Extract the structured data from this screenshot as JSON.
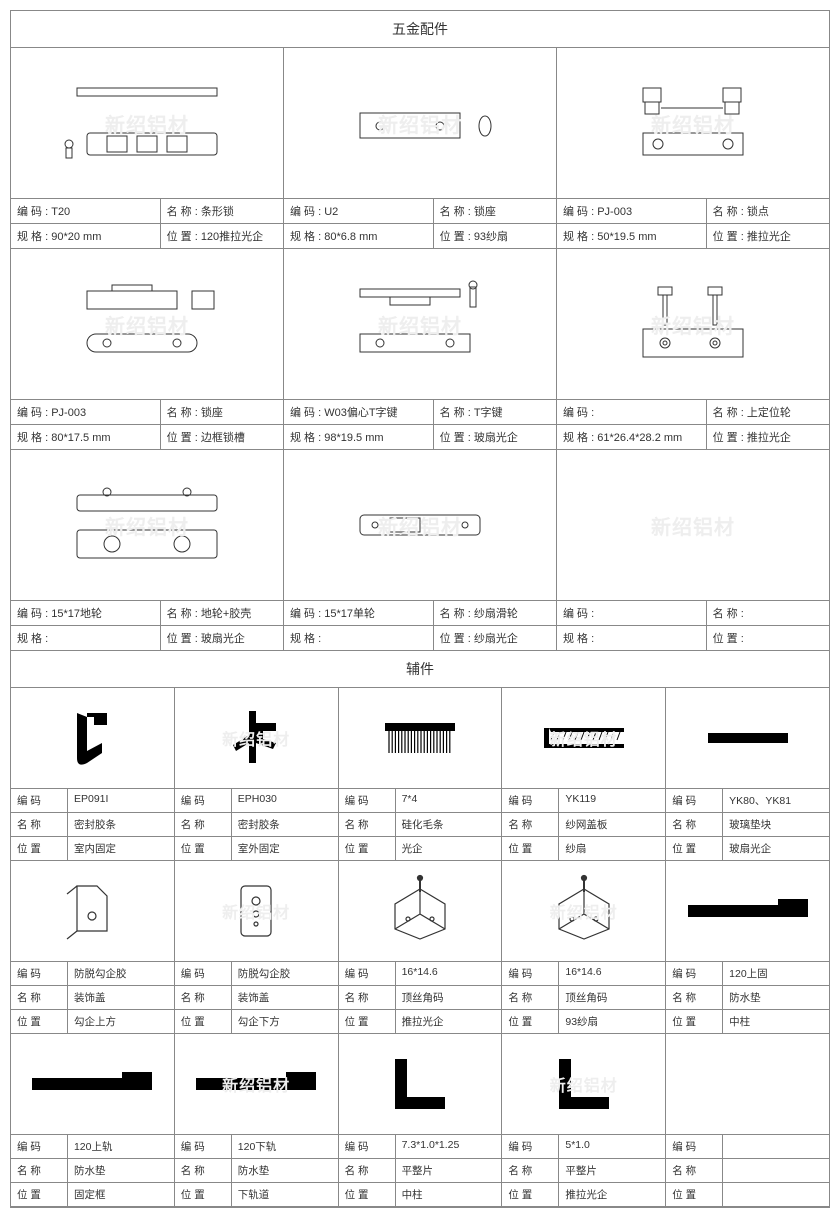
{
  "watermark": "新绍铝材",
  "labels": {
    "code": "编 码",
    "name": "名 称",
    "spec": "规 格",
    "pos": "位 置"
  },
  "section1_title": "五金配件",
  "hardware": [
    [
      {
        "code": "T20",
        "name": "条形锁",
        "spec": "90*20 mm",
        "pos": "120推拉光企"
      },
      {
        "code": "U2",
        "name": "锁座",
        "spec": "80*6.8 mm",
        "pos": "93纱扇"
      },
      {
        "code": "PJ-003",
        "name": "锁点",
        "spec": "50*19.5 mm",
        "pos": "推拉光企"
      }
    ],
    [
      {
        "code": "PJ-003",
        "name": "锁座",
        "spec": "80*17.5 mm",
        "pos": "边框锁槽"
      },
      {
        "code": "W03偏心T字键",
        "name": "T字键",
        "spec": "98*19.5 mm",
        "pos": "玻扇光企"
      },
      {
        "code": "",
        "name": "上定位轮",
        "spec": "61*26.4*28.2 mm",
        "pos": "推拉光企"
      }
    ],
    [
      {
        "code": "15*17地轮",
        "name": "地轮+胶壳",
        "spec": "",
        "pos": "玻扇光企"
      },
      {
        "code": "15*17单轮",
        "name": "纱扇滑轮",
        "spec": "",
        "pos": "纱扇光企"
      },
      {
        "code": "",
        "name": "",
        "spec": "",
        "pos": ""
      }
    ]
  ],
  "section2_title": "辅件",
  "acc": [
    [
      {
        "code": "EP091I",
        "name": "密封胶条",
        "pos": "室内固定",
        "shape": "profile1"
      },
      {
        "code": "EPH030",
        "name": "密封胶条",
        "pos": "室外固定",
        "shape": "profile2"
      },
      {
        "code": "7*4",
        "name": "硅化毛条",
        "pos": "光企",
        "shape": "brush"
      },
      {
        "code": "YK119",
        "name": "纱网盖板",
        "pos": "纱扇",
        "shape": "angle"
      },
      {
        "code": "YK80、YK81",
        "name": "玻璃垫块",
        "pos": "玻扇光企",
        "shape": "bar"
      }
    ],
    [
      {
        "code": "防脱勾企胶",
        "name": "装饰盖",
        "pos": "勾企上方",
        "shape": "cover1"
      },
      {
        "code": "防脱勾企胶",
        "name": "装饰盖",
        "pos": "勾企下方",
        "shape": "cover2"
      },
      {
        "code": "16*14.6",
        "name": "顶丝角码",
        "pos": "推拉光企",
        "shape": "corner"
      },
      {
        "code": "16*14.6",
        "name": "顶丝角码",
        "pos": "93纱扇",
        "shape": "corner"
      },
      {
        "code": "120上固",
        "name": "防水垫",
        "pos": "中柱",
        "shape": "longbar"
      }
    ],
    [
      {
        "code": "120上轨",
        "name": "防水垫",
        "pos": "固定框",
        "shape": "longbar"
      },
      {
        "code": "120下轨",
        "name": "防水垫",
        "pos": "下轨道",
        "shape": "longbar"
      },
      {
        "code": "7.3*1.0*1.25",
        "name": "平整片",
        "pos": "中柱",
        "shape": "lbracket"
      },
      {
        "code": "5*1.0",
        "name": "平整片",
        "pos": "推拉光企",
        "shape": "lbracket"
      },
      {
        "code": "",
        "name": "",
        "pos": "",
        "shape": "none"
      }
    ]
  ]
}
